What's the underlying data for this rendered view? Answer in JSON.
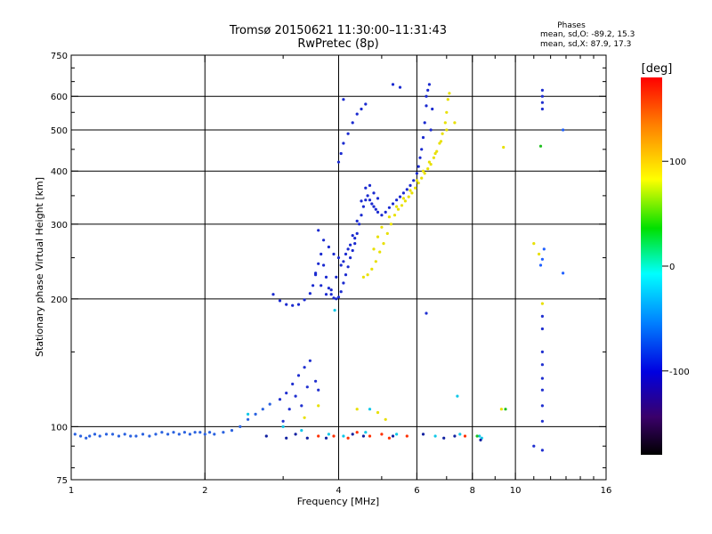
{
  "chart_data": {
    "type": "scatter",
    "title": "Tromsø 20150621 11:30:00–11:31:43",
    "subtitle": "RwPretec (8p)",
    "phases_title": "Phases",
    "phases_o": "mean, sd,O: -89.2, 15.3",
    "phases_x": "mean, sd,X: 87.9, 17.3",
    "xlabel": "Frequency [MHz]",
    "ylabel": "Stationary phase Virtual Height [km]",
    "xscale": "log",
    "yscale": "log",
    "xlim": [
      1,
      16
    ],
    "ylim": [
      75,
      750
    ],
    "xticks": [
      1,
      2,
      4,
      6,
      8,
      10,
      16
    ],
    "yticks": [
      75,
      100,
      200,
      300,
      400,
      500,
      600,
      750
    ],
    "xgrid": [
      2,
      4,
      6,
      8,
      10
    ],
    "ygrid": [
      100,
      200,
      300,
      400,
      500,
      600
    ],
    "grid": true,
    "colorbar": {
      "label": "[deg]",
      "range": [
        -180,
        180
      ],
      "ticks": [
        100,
        0,
        -100
      ]
    },
    "series": [
      {
        "color": "#2a62e0",
        "points": [
          [
            1.02,
            96
          ],
          [
            1.05,
            95
          ],
          [
            1.08,
            94
          ],
          [
            1.1,
            95
          ],
          [
            1.13,
            96
          ],
          [
            1.16,
            95
          ],
          [
            1.2,
            96
          ],
          [
            1.24,
            96
          ],
          [
            1.28,
            95
          ],
          [
            1.32,
            96
          ],
          [
            1.36,
            95
          ],
          [
            1.4,
            95
          ],
          [
            1.45,
            96
          ],
          [
            1.5,
            95
          ],
          [
            1.55,
            96
          ],
          [
            1.6,
            97
          ],
          [
            1.65,
            96
          ],
          [
            1.7,
            97
          ],
          [
            1.75,
            96
          ],
          [
            1.8,
            97
          ],
          [
            1.85,
            96
          ],
          [
            1.9,
            97
          ],
          [
            1.95,
            97
          ],
          [
            2.0,
            96
          ],
          [
            2.05,
            97
          ],
          [
            2.1,
            96
          ],
          [
            2.2,
            97
          ],
          [
            2.3,
            98
          ],
          [
            2.4,
            100
          ],
          [
            2.5,
            104
          ],
          [
            2.6,
            107
          ],
          [
            2.7,
            110
          ],
          [
            2.8,
            113
          ]
        ]
      },
      {
        "color": "#2030d0",
        "points": [
          [
            2.95,
            116
          ],
          [
            3.05,
            120
          ],
          [
            3.15,
            126
          ],
          [
            3.25,
            132
          ],
          [
            3.35,
            138
          ],
          [
            3.45,
            143
          ],
          [
            3.2,
            118
          ],
          [
            3.4,
            124
          ],
          [
            3.55,
            128
          ],
          [
            3.6,
            122
          ],
          [
            3.3,
            112
          ],
          [
            3.0,
            103
          ],
          [
            3.1,
            110
          ]
        ]
      },
      {
        "color": "#1a2ad0",
        "points": [
          [
            2.85,
            205
          ],
          [
            2.95,
            198
          ],
          [
            3.05,
            194
          ],
          [
            3.15,
            193
          ],
          [
            3.25,
            194
          ],
          [
            3.35,
            199
          ],
          [
            3.45,
            206
          ],
          [
            3.5,
            215
          ],
          [
            3.55,
            228
          ],
          [
            3.6,
            242
          ],
          [
            3.65,
            255
          ],
          [
            3.7,
            240
          ],
          [
            3.75,
            225
          ],
          [
            3.8,
            212
          ],
          [
            3.85,
            205
          ],
          [
            3.9,
            201
          ],
          [
            3.95,
            200
          ],
          [
            4.0,
            202
          ],
          [
            4.05,
            208
          ],
          [
            4.1,
            218
          ],
          [
            4.15,
            228
          ],
          [
            4.2,
            238
          ],
          [
            4.25,
            250
          ],
          [
            4.3,
            260
          ],
          [
            4.35,
            270
          ],
          [
            4.4,
            285
          ],
          [
            4.45,
            300
          ],
          [
            4.5,
            315
          ],
          [
            4.55,
            330
          ],
          [
            4.6,
            342
          ],
          [
            4.65,
            350
          ],
          [
            4.7,
            342
          ],
          [
            4.75,
            335
          ],
          [
            4.8,
            330
          ],
          [
            4.85,
            325
          ],
          [
            4.9,
            320
          ],
          [
            5.0,
            315
          ],
          [
            5.1,
            320
          ],
          [
            5.2,
            328
          ],
          [
            5.3,
            335
          ],
          [
            5.4,
            342
          ],
          [
            5.5,
            348
          ],
          [
            5.6,
            355
          ],
          [
            5.7,
            362
          ],
          [
            5.8,
            370
          ],
          [
            5.9,
            380
          ],
          [
            6.0,
            395
          ],
          [
            6.05,
            410
          ],
          [
            6.1,
            430
          ],
          [
            6.15,
            450
          ],
          [
            6.2,
            480
          ],
          [
            6.25,
            520
          ],
          [
            6.3,
            570
          ],
          [
            6.35,
            620
          ],
          [
            3.6,
            290
          ],
          [
            3.7,
            275
          ],
          [
            3.8,
            265
          ],
          [
            3.9,
            255
          ],
          [
            4.0,
            250
          ],
          [
            4.1,
            245
          ],
          [
            4.2,
            262
          ],
          [
            4.3,
            282
          ],
          [
            4.4,
            305
          ],
          [
            4.5,
            340
          ],
          [
            4.6,
            365
          ],
          [
            4.7,
            370
          ],
          [
            4.8,
            355
          ],
          [
            4.9,
            345
          ],
          [
            4.0,
            420
          ],
          [
            4.05,
            440
          ],
          [
            4.1,
            465
          ],
          [
            4.2,
            490
          ],
          [
            4.3,
            520
          ],
          [
            4.4,
            545
          ],
          [
            4.5,
            560
          ],
          [
            4.6,
            575
          ],
          [
            4.1,
            590
          ],
          [
            5.3,
            640
          ],
          [
            5.5,
            630
          ],
          [
            6.3,
            600
          ],
          [
            6.4,
            640
          ],
          [
            3.55,
            230
          ],
          [
            3.65,
            215
          ],
          [
            3.75,
            205
          ],
          [
            3.85,
            210
          ],
          [
            3.95,
            225
          ],
          [
            4.05,
            240
          ],
          [
            4.15,
            255
          ],
          [
            4.25,
            268
          ],
          [
            4.35,
            278
          ],
          [
            6.5,
            560
          ],
          [
            6.45,
            500
          ]
        ]
      },
      {
        "color": "#e8e000",
        "points": [
          [
            4.55,
            225
          ],
          [
            4.65,
            228
          ],
          [
            4.75,
            235
          ],
          [
            4.85,
            245
          ],
          [
            4.95,
            258
          ],
          [
            5.05,
            270
          ],
          [
            5.15,
            285
          ],
          [
            5.25,
            300
          ],
          [
            5.35,
            315
          ],
          [
            5.45,
            325
          ],
          [
            5.55,
            332
          ],
          [
            5.65,
            340
          ],
          [
            5.75,
            348
          ],
          [
            5.85,
            355
          ],
          [
            5.95,
            365
          ],
          [
            6.05,
            375
          ],
          [
            6.15,
            385
          ],
          [
            6.25,
            395
          ],
          [
            6.35,
            405
          ],
          [
            6.45,
            415
          ],
          [
            6.55,
            430
          ],
          [
            6.65,
            445
          ],
          [
            6.75,
            465
          ],
          [
            6.85,
            490
          ],
          [
            6.95,
            520
          ],
          [
            7.0,
            550
          ],
          [
            7.05,
            590
          ],
          [
            7.1,
            610
          ],
          [
            4.8,
            262
          ],
          [
            4.9,
            280
          ],
          [
            5.0,
            295
          ],
          [
            5.2,
            312
          ],
          [
            5.4,
            330
          ],
          [
            5.6,
            345
          ],
          [
            5.8,
            360
          ],
          [
            6.0,
            380
          ],
          [
            6.2,
            400
          ],
          [
            6.4,
            420
          ],
          [
            6.6,
            440
          ],
          [
            6.8,
            470
          ],
          [
            7.0,
            500
          ],
          [
            7.3,
            520
          ]
        ]
      },
      {
        "color": "#2060ff",
        "points": [
          [
            11.4,
            240
          ],
          [
            11.5,
            248
          ],
          [
            11.6,
            262
          ],
          [
            12.8,
            230
          ],
          [
            12.8,
            500
          ]
        ]
      },
      {
        "color": "#e8e000",
        "points": [
          [
            9.4,
            455
          ],
          [
            9.3,
            110
          ],
          [
            11.0,
            270
          ],
          [
            11.3,
            255
          ],
          [
            11.5,
            195
          ],
          [
            4.4,
            110
          ],
          [
            4.9,
            108
          ],
          [
            5.1,
            104
          ],
          [
            3.35,
            105
          ],
          [
            3.6,
            112
          ]
        ]
      },
      {
        "color": "#2030d0",
        "points": [
          [
            11.5,
            620
          ],
          [
            11.5,
            600
          ],
          [
            11.5,
            580
          ],
          [
            11.5,
            560
          ],
          [
            11.5,
            182
          ],
          [
            11.5,
            170
          ],
          [
            11.5,
            150
          ],
          [
            11.5,
            140
          ],
          [
            11.5,
            130
          ],
          [
            11.5,
            122
          ],
          [
            11.5,
            112
          ],
          [
            11.5,
            103
          ],
          [
            11.5,
            88
          ],
          [
            11.0,
            90
          ],
          [
            6.3,
            185
          ]
        ]
      },
      {
        "color": "#ff3000",
        "points": [
          [
            3.6,
            95
          ],
          [
            3.9,
            95
          ],
          [
            4.2,
            94
          ],
          [
            4.7,
            95
          ],
          [
            5.0,
            96
          ],
          [
            5.2,
            94
          ],
          [
            5.7,
            95
          ],
          [
            7.7,
            95
          ],
          [
            4.4,
            97
          ]
        ]
      },
      {
        "color": "#10c8e8",
        "points": [
          [
            2.5,
            107
          ],
          [
            3.0,
            100
          ],
          [
            3.3,
            98
          ],
          [
            3.8,
            96
          ],
          [
            4.1,
            95
          ],
          [
            4.6,
            97
          ],
          [
            5.4,
            96
          ],
          [
            6.6,
            95
          ],
          [
            7.5,
            96
          ],
          [
            8.3,
            95
          ],
          [
            8.4,
            94
          ],
          [
            4.7,
            110
          ],
          [
            3.92,
            188
          ],
          [
            7.4,
            118
          ]
        ]
      },
      {
        "color": "#20c020",
        "points": [
          [
            8.2,
            95
          ],
          [
            9.5,
            110
          ],
          [
            11.4,
            458
          ]
        ]
      },
      {
        "color": "#1020a0",
        "points": [
          [
            2.75,
            95
          ],
          [
            3.05,
            94
          ],
          [
            3.2,
            96
          ],
          [
            3.4,
            94
          ],
          [
            3.75,
            94
          ],
          [
            4.3,
            96
          ],
          [
            4.55,
            95
          ],
          [
            5.3,
            95
          ],
          [
            6.2,
            96
          ],
          [
            6.9,
            94
          ],
          [
            7.3,
            95
          ],
          [
            8.35,
            93
          ]
        ]
      }
    ]
  }
}
